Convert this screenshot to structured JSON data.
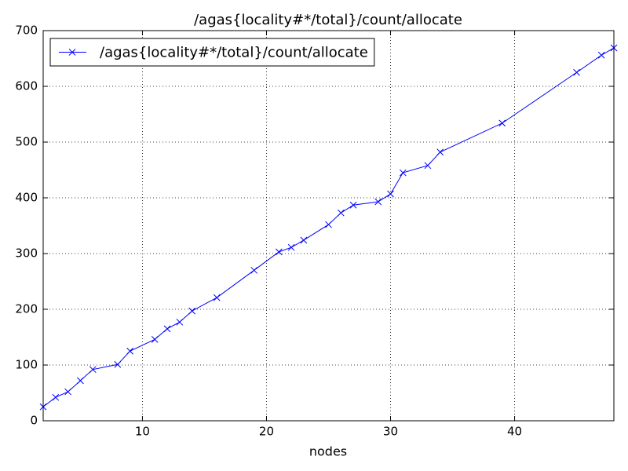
{
  "chart_data": {
    "type": "line",
    "title": "/agas{locality#*/total}/count/allocate",
    "x_label": "nodes",
    "x": [
      2,
      3,
      4,
      5,
      6,
      8,
      9,
      11,
      12,
      13,
      14,
      16,
      19,
      21,
      22,
      23,
      25,
      26,
      27,
      29,
      30,
      31,
      33,
      34,
      39,
      45,
      47,
      48
    ],
    "series": [
      {
        "name": "/agas{locality#*/total}/count/allocate",
        "color": "#0000ff",
        "values": [
          25,
          42,
          52,
          72,
          92,
          101,
          125,
          146,
          165,
          177,
          197,
          221,
          270,
          303,
          311,
          324,
          352,
          373,
          387,
          393,
          407,
          445,
          458,
          482,
          534,
          625,
          656,
          669
        ]
      }
    ],
    "xlim": [
      2,
      48
    ],
    "xticks": [
      10,
      20,
      30,
      40
    ],
    "ylim": [
      0,
      700
    ],
    "yticks": [
      0,
      100,
      200,
      300,
      400,
      500,
      600,
      700
    ],
    "grid": true,
    "legend": "upper left"
  }
}
